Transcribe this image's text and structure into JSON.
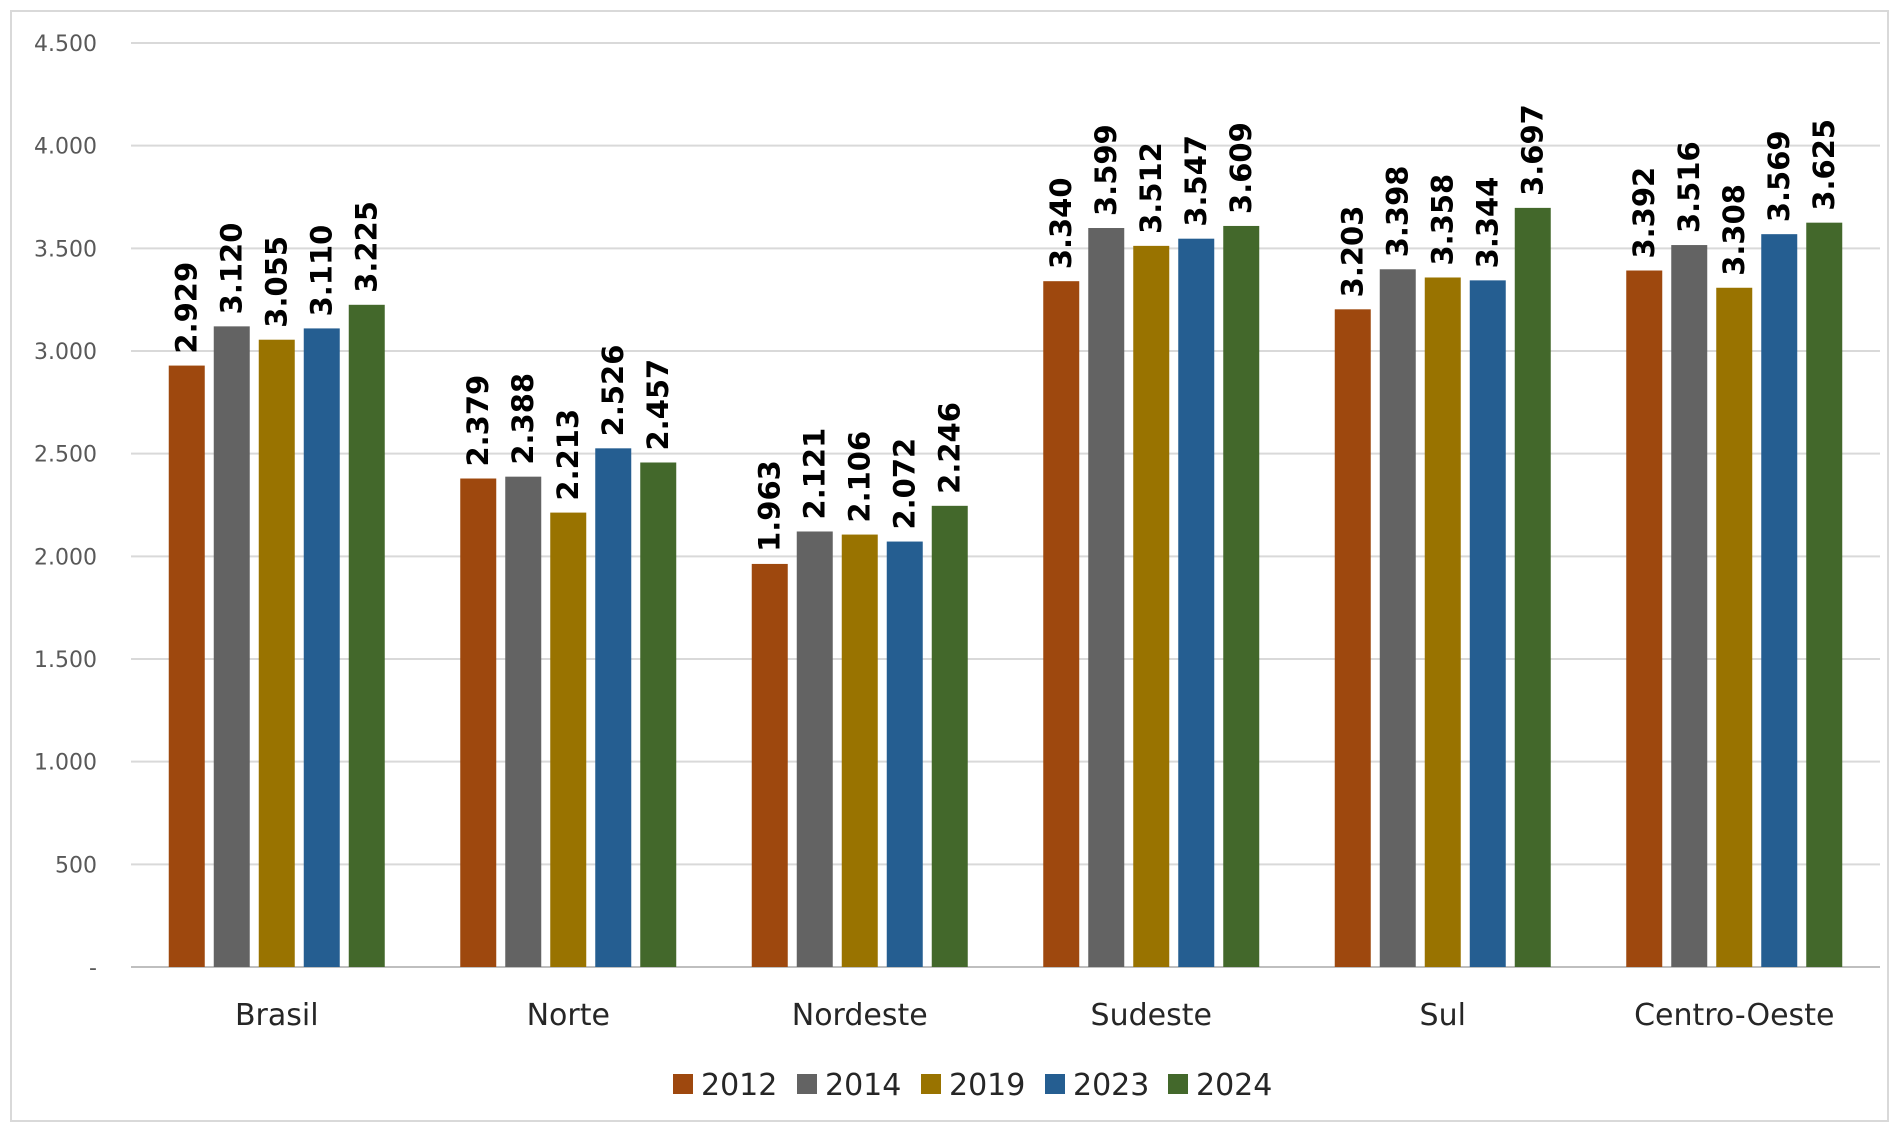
{
  "chart_data": {
    "type": "bar",
    "title": "",
    "xlabel": "",
    "ylabel": "",
    "categories": [
      "Brasil",
      "Norte",
      "Nordeste",
      "Sudeste",
      "Sul",
      "Centro-Oeste"
    ],
    "series": [
      {
        "name": "2012",
        "color": "#9E480E",
        "values": [
          2929,
          2379,
          1963,
          3340,
          3203,
          3392
        ],
        "labels": [
          "2.929",
          "2.379",
          "1.963",
          "3.340",
          "3.203",
          "3.392"
        ]
      },
      {
        "name": "2014",
        "color": "#636363",
        "values": [
          3120,
          2388,
          2121,
          3599,
          3398,
          3516
        ],
        "labels": [
          "3.120",
          "2.388",
          "2.121",
          "3.599",
          "3.398",
          "3.516"
        ]
      },
      {
        "name": "2019",
        "color": "#997300",
        "values": [
          3055,
          2213,
          2106,
          3512,
          3358,
          3308
        ],
        "labels": [
          "3.055",
          "2.213",
          "2.106",
          "3.512",
          "3.358",
          "3.308"
        ]
      },
      {
        "name": "2023",
        "color": "#255E91",
        "values": [
          3110,
          2526,
          2072,
          3547,
          3344,
          3569
        ],
        "labels": [
          "3.110",
          "2.526",
          "2.072",
          "3.547",
          "3.344",
          "3.569"
        ]
      },
      {
        "name": "2024",
        "color": "#43682B",
        "values": [
          3225,
          2457,
          2246,
          3609,
          3697,
          3625
        ],
        "labels": [
          "3.225",
          "2.457",
          "2.246",
          "3.609",
          "3.697",
          "3.625"
        ]
      }
    ],
    "ylim": [
      0,
      4500
    ],
    "yticks": [
      {
        "value": 0,
        "label": "-"
      },
      {
        "value": 500,
        "label": "500"
      },
      {
        "value": 1000,
        "label": "1.000"
      },
      {
        "value": 1500,
        "label": "1.500"
      },
      {
        "value": 2000,
        "label": "2.000"
      },
      {
        "value": 2500,
        "label": "2.500"
      },
      {
        "value": 3000,
        "label": "3.000"
      },
      {
        "value": 3500,
        "label": "3.500"
      },
      {
        "value": 4000,
        "label": "4.000"
      },
      {
        "value": 4500,
        "label": "4.500"
      }
    ],
    "grid": true,
    "legend_position": "bottom",
    "data_labels": "rotated-vertical"
  }
}
